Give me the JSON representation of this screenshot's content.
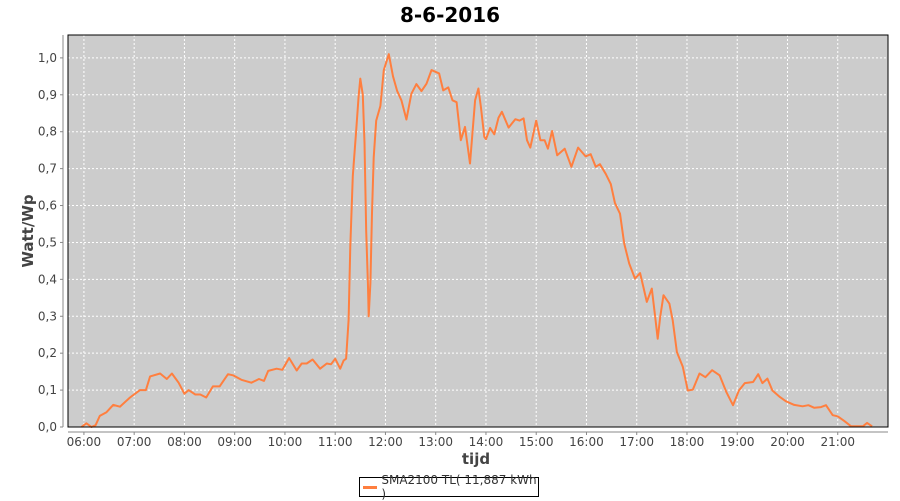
{
  "chart_data": {
    "type": "line",
    "title": "8-6-2016",
    "xlabel": "tijd",
    "ylabel": "Watt/Wp",
    "xlim": [
      "05:41",
      "22:00"
    ],
    "ylim": [
      0,
      1.062
    ],
    "grid": true,
    "legend_position": "bottom",
    "x_ticks": [
      "06:00",
      "07:00",
      "08:00",
      "09:00",
      "10:00",
      "11:00",
      "12:00",
      "13:00",
      "14:00",
      "15:00",
      "16:00",
      "17:00",
      "18:00",
      "19:00",
      "20:00",
      "21:00"
    ],
    "y_ticks": [
      "0,0",
      "0,1",
      "0,2",
      "0,3",
      "0,4",
      "0,5",
      "0,6",
      "0,7",
      "0,8",
      "0,9",
      "1,0"
    ],
    "background_color": "#cccccc",
    "series": [
      {
        "name": "SMA2100 TL( 11,887 kWh )",
        "color": "#ff7f3f",
        "points": [
          [
            "05:57",
            0.0
          ],
          [
            "06:03",
            0.01
          ],
          [
            "06:09",
            0.0
          ],
          [
            "06:14",
            0.005
          ],
          [
            "06:19",
            0.03
          ],
          [
            "06:27",
            0.04
          ],
          [
            "06:35",
            0.06
          ],
          [
            "06:43",
            0.055
          ],
          [
            "06:55",
            0.08
          ],
          [
            "07:07",
            0.1
          ],
          [
            "07:14",
            0.1
          ],
          [
            "07:19",
            0.137
          ],
          [
            "07:31",
            0.145
          ],
          [
            "07:39",
            0.13
          ],
          [
            "07:45",
            0.145
          ],
          [
            "07:53",
            0.12
          ],
          [
            "08:00",
            0.09
          ],
          [
            "08:05",
            0.1
          ],
          [
            "08:13",
            0.088
          ],
          [
            "08:19",
            0.088
          ],
          [
            "08:26",
            0.08
          ],
          [
            "08:34",
            0.11
          ],
          [
            "08:42",
            0.11
          ],
          [
            "08:52",
            0.143
          ],
          [
            "08:58",
            0.14
          ],
          [
            "09:08",
            0.128
          ],
          [
            "09:20",
            0.12
          ],
          [
            "09:29",
            0.13
          ],
          [
            "09:35",
            0.125
          ],
          [
            "09:40",
            0.152
          ],
          [
            "09:50",
            0.158
          ],
          [
            "09:57",
            0.155
          ],
          [
            "10:05",
            0.187
          ],
          [
            "10:14",
            0.153
          ],
          [
            "10:20",
            0.172
          ],
          [
            "10:26",
            0.172
          ],
          [
            "10:33",
            0.183
          ],
          [
            "10:42",
            0.158
          ],
          [
            "10:50",
            0.172
          ],
          [
            "10:55",
            0.17
          ],
          [
            "11:00",
            0.185
          ],
          [
            "11:06",
            0.158
          ],
          [
            "11:10",
            0.18
          ],
          [
            "11:13",
            0.185
          ],
          [
            "11:16",
            0.29
          ],
          [
            "11:18",
            0.49
          ],
          [
            "11:21",
            0.68
          ],
          [
            "11:25",
            0.8
          ],
          [
            "11:28",
            0.895
          ],
          [
            "11:30",
            0.944
          ],
          [
            "11:33",
            0.9
          ],
          [
            "11:35",
            0.77
          ],
          [
            "11:37",
            0.53
          ],
          [
            "11:39",
            0.39
          ],
          [
            "11:40",
            0.3
          ],
          [
            "11:42",
            0.39
          ],
          [
            "11:44",
            0.58
          ],
          [
            "11:46",
            0.73
          ],
          [
            "11:49",
            0.83
          ],
          [
            "11:54",
            0.87
          ],
          [
            "11:58",
            0.967
          ],
          [
            "12:04",
            1.01
          ],
          [
            "12:09",
            0.95
          ],
          [
            "12:14",
            0.91
          ],
          [
            "12:19",
            0.885
          ],
          [
            "12:25",
            0.833
          ],
          [
            "12:31",
            0.903
          ],
          [
            "12:37",
            0.929
          ],
          [
            "12:43",
            0.91
          ],
          [
            "12:49",
            0.93
          ],
          [
            "12:55",
            0.967
          ],
          [
            "13:04",
            0.958
          ],
          [
            "13:09",
            0.912
          ],
          [
            "13:15",
            0.92
          ],
          [
            "13:20",
            0.885
          ],
          [
            "13:25",
            0.88
          ],
          [
            "13:30",
            0.777
          ],
          [
            "13:35",
            0.813
          ],
          [
            "13:41",
            0.714
          ],
          [
            "13:47",
            0.885
          ],
          [
            "13:51",
            0.917
          ],
          [
            "13:54",
            0.867
          ],
          [
            "13:58",
            0.786
          ],
          [
            "14:00",
            0.78
          ],
          [
            "14:05",
            0.81
          ],
          [
            "14:10",
            0.793
          ],
          [
            "14:15",
            0.838
          ],
          [
            "14:19",
            0.854
          ],
          [
            "14:27",
            0.811
          ],
          [
            "14:35",
            0.834
          ],
          [
            "14:40",
            0.83
          ],
          [
            "14:45",
            0.836
          ],
          [
            "14:49",
            0.777
          ],
          [
            "14:53",
            0.757
          ],
          [
            "15:00",
            0.83
          ],
          [
            "15:05",
            0.777
          ],
          [
            "15:10",
            0.777
          ],
          [
            "15:14",
            0.754
          ],
          [
            "15:19",
            0.802
          ],
          [
            "15:25",
            0.736
          ],
          [
            "15:34",
            0.754
          ],
          [
            "15:42",
            0.705
          ],
          [
            "15:50",
            0.757
          ],
          [
            "15:59",
            0.733
          ],
          [
            "16:05",
            0.739
          ],
          [
            "16:11",
            0.705
          ],
          [
            "16:16",
            0.712
          ],
          [
            "16:23",
            0.686
          ],
          [
            "16:29",
            0.658
          ],
          [
            "16:34",
            0.607
          ],
          [
            "16:40",
            0.578
          ],
          [
            "16:45",
            0.497
          ],
          [
            "16:51",
            0.443
          ],
          [
            "16:58",
            0.402
          ],
          [
            "17:04",
            0.417
          ],
          [
            "17:08",
            0.379
          ],
          [
            "17:12",
            0.339
          ],
          [
            "17:18",
            0.375
          ],
          [
            "17:22",
            0.298
          ],
          [
            "17:25",
            0.239
          ],
          [
            "17:28",
            0.298
          ],
          [
            "17:32",
            0.357
          ],
          [
            "17:39",
            0.334
          ],
          [
            "17:43",
            0.289
          ],
          [
            "17:48",
            0.203
          ],
          [
            "17:55",
            0.163
          ],
          [
            "18:01",
            0.099
          ],
          [
            "18:07",
            0.101
          ],
          [
            "18:15",
            0.145
          ],
          [
            "18:22",
            0.135
          ],
          [
            "18:30",
            0.154
          ],
          [
            "18:39",
            0.14
          ],
          [
            "18:47",
            0.095
          ],
          [
            "18:55",
            0.059
          ],
          [
            "19:02",
            0.099
          ],
          [
            "19:09",
            0.119
          ],
          [
            "19:19",
            0.122
          ],
          [
            "19:25",
            0.143
          ],
          [
            "19:30",
            0.119
          ],
          [
            "19:36",
            0.131
          ],
          [
            "19:42",
            0.099
          ],
          [
            "19:51",
            0.081
          ],
          [
            "19:58",
            0.07
          ],
          [
            "20:08",
            0.06
          ],
          [
            "20:18",
            0.056
          ],
          [
            "20:25",
            0.059
          ],
          [
            "20:32",
            0.052
          ],
          [
            "20:40",
            0.054
          ],
          [
            "20:46",
            0.059
          ],
          [
            "20:54",
            0.032
          ],
          [
            "21:00",
            0.029
          ],
          [
            "21:08",
            0.016
          ],
          [
            "21:16",
            0.002
          ],
          [
            "21:30",
            0.002
          ],
          [
            "21:35",
            0.011
          ],
          [
            "21:41",
            0.002
          ]
        ]
      }
    ]
  }
}
